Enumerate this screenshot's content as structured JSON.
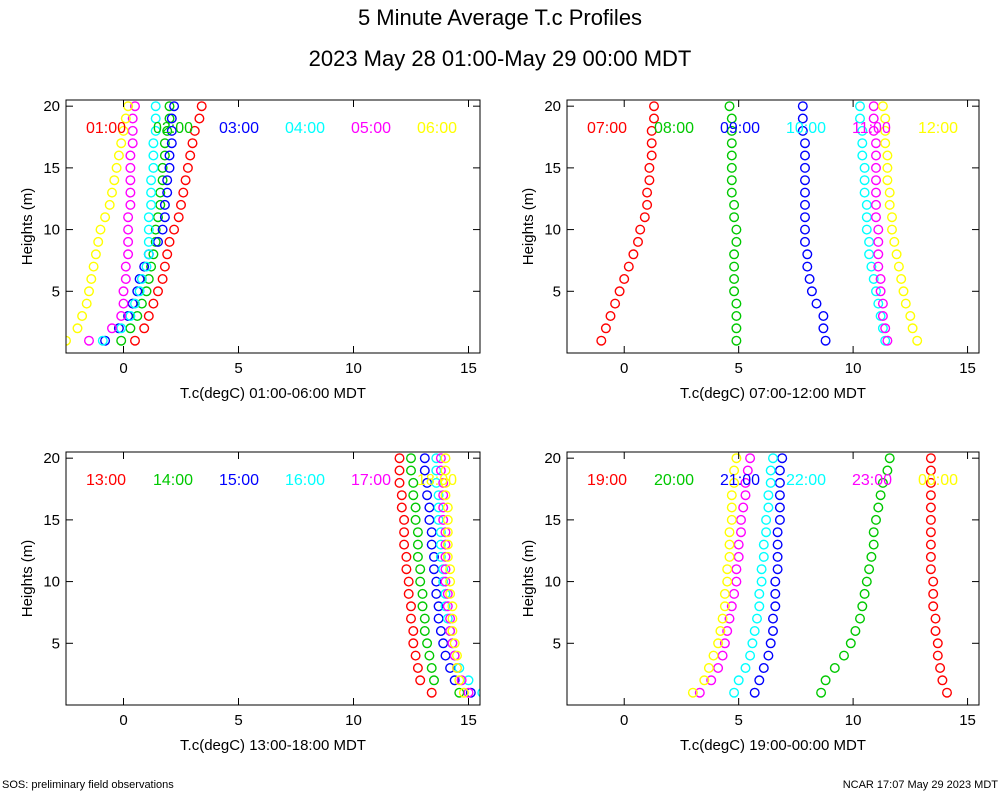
{
  "title": "5 Minute Average T.c Profiles",
  "subtitle": "2023 May 28 01:00-May 29 00:00 MDT",
  "footer_left": "SOS: preliminary field observations",
  "footer_right": "NCAR 17:07 May 29 2023 MDT",
  "colors": {
    "red": "#ff0000",
    "green": "#00c800",
    "blue": "#0000ff",
    "cyan": "#00ffff",
    "magenta": "#ff00ff",
    "yellow": "#ffff00"
  },
  "chart_data": [
    {
      "type": "scatter",
      "xlabel": "T.c(degC) 01:00-06:00 MDT",
      "ylabel": "Heights (m)",
      "xlim": [
        -2.5,
        15.5
      ],
      "ylim": [
        0,
        20.5
      ],
      "xticks": [
        0,
        5,
        10,
        15
      ],
      "yticks": [
        5,
        10,
        15,
        20
      ],
      "heights": [
        1,
        2,
        3,
        4,
        5,
        6,
        7,
        8,
        9,
        10,
        11,
        12,
        13,
        14,
        15,
        16,
        17,
        18,
        19,
        20
      ],
      "series": [
        {
          "name": "01:00",
          "color": "red",
          "values": [
            0.5,
            0.9,
            1.1,
            1.3,
            1.5,
            1.7,
            1.8,
            1.9,
            2.0,
            2.2,
            2.4,
            2.5,
            2.6,
            2.7,
            2.8,
            2.9,
            3.0,
            3.1,
            3.3,
            3.4
          ]
        },
        {
          "name": "02:00",
          "color": "green",
          "values": [
            -0.1,
            0.3,
            0.6,
            0.8,
            1.0,
            1.1,
            1.2,
            1.3,
            1.4,
            1.4,
            1.5,
            1.6,
            1.6,
            1.7,
            1.7,
            1.8,
            1.8,
            1.9,
            2.0,
            2.0
          ]
        },
        {
          "name": "03:00",
          "color": "blue",
          "values": [
            -0.8,
            -0.2,
            0.2,
            0.4,
            0.6,
            0.7,
            0.9,
            1.1,
            1.5,
            1.7,
            1.8,
            1.8,
            1.9,
            1.9,
            2.0,
            2.0,
            2.1,
            2.1,
            2.1,
            2.2
          ]
        },
        {
          "name": "04:00",
          "color": "cyan",
          "values": [
            -0.9,
            -0.1,
            0.3,
            0.5,
            0.7,
            0.8,
            1.0,
            1.1,
            1.1,
            1.1,
            1.1,
            1.2,
            1.2,
            1.2,
            1.3,
            1.3,
            1.3,
            1.4,
            1.4,
            1.4
          ]
        },
        {
          "name": "05:00",
          "color": "magenta",
          "values": [
            -1.5,
            -0.5,
            -0.1,
            0.0,
            0.0,
            0.1,
            0.1,
            0.2,
            0.2,
            0.2,
            0.2,
            0.3,
            0.3,
            0.3,
            0.3,
            0.3,
            0.4,
            0.4,
            0.4,
            0.5
          ]
        },
        {
          "name": "06:00",
          "color": "yellow",
          "values": [
            -2.5,
            -2.0,
            -1.8,
            -1.6,
            -1.5,
            -1.4,
            -1.3,
            -1.2,
            -1.1,
            -1.0,
            -0.8,
            -0.6,
            -0.5,
            -0.4,
            -0.3,
            -0.2,
            -0.1,
            0.0,
            0.1,
            0.2
          ]
        }
      ]
    },
    {
      "type": "scatter",
      "xlabel": "T.c(degC) 07:00-12:00 MDT",
      "ylabel": "Heights (m)",
      "xlim": [
        -2.5,
        15.5
      ],
      "ylim": [
        0,
        20.5
      ],
      "xticks": [
        0,
        5,
        10,
        15
      ],
      "yticks": [
        5,
        10,
        15,
        20
      ],
      "heights": [
        1,
        2,
        3,
        4,
        5,
        6,
        7,
        8,
        9,
        10,
        11,
        12,
        13,
        14,
        15,
        16,
        17,
        18,
        19,
        20
      ],
      "series": [
        {
          "name": "07:00",
          "color": "red",
          "values": [
            -1.0,
            -0.8,
            -0.6,
            -0.4,
            -0.2,
            0.0,
            0.2,
            0.4,
            0.6,
            0.7,
            0.9,
            1.0,
            1.0,
            1.1,
            1.1,
            1.2,
            1.2,
            1.2,
            1.3,
            1.3
          ]
        },
        {
          "name": "08:00",
          "color": "green",
          "values": [
            4.9,
            4.9,
            4.9,
            4.9,
            4.8,
            4.8,
            4.8,
            4.8,
            4.9,
            4.9,
            4.8,
            4.8,
            4.7,
            4.7,
            4.7,
            4.7,
            4.7,
            4.7,
            4.7,
            4.6
          ]
        },
        {
          "name": "09:00",
          "color": "blue",
          "values": [
            8.8,
            8.7,
            8.7,
            8.4,
            8.2,
            8.1,
            8.0,
            8.0,
            7.9,
            7.9,
            7.9,
            7.9,
            7.9,
            7.9,
            7.9,
            7.9,
            7.9,
            7.8,
            7.8,
            7.8
          ]
        },
        {
          "name": "10:00",
          "color": "cyan",
          "values": [
            11.4,
            11.3,
            11.2,
            11.1,
            11.0,
            10.9,
            10.8,
            10.7,
            10.7,
            10.6,
            10.6,
            10.6,
            10.5,
            10.5,
            10.5,
            10.4,
            10.4,
            10.4,
            10.3,
            10.3
          ]
        },
        {
          "name": "11:00",
          "color": "magenta",
          "values": [
            11.5,
            11.4,
            11.3,
            11.3,
            11.2,
            11.2,
            11.1,
            11.1,
            11.1,
            11.1,
            11.0,
            11.0,
            11.0,
            11.0,
            11.0,
            11.0,
            11.0,
            10.9,
            10.9,
            10.9
          ]
        },
        {
          "name": "12:00",
          "color": "yellow",
          "values": [
            12.8,
            12.6,
            12.5,
            12.3,
            12.2,
            12.1,
            12.0,
            11.9,
            11.8,
            11.7,
            11.7,
            11.6,
            11.6,
            11.5,
            11.5,
            11.5,
            11.4,
            11.4,
            11.4,
            11.3
          ]
        }
      ]
    },
    {
      "type": "scatter",
      "xlabel": "T.c(degC) 13:00-18:00 MDT",
      "ylabel": "Heights (m)",
      "xlim": [
        -2.5,
        15.5
      ],
      "ylim": [
        0,
        20.5
      ],
      "xticks": [
        0,
        5,
        10,
        15
      ],
      "yticks": [
        5,
        10,
        15,
        20
      ],
      "heights": [
        1,
        2,
        3,
        4,
        5,
        6,
        7,
        8,
        9,
        10,
        11,
        12,
        13,
        14,
        15,
        16,
        17,
        18,
        19,
        20
      ],
      "series": [
        {
          "name": "13:00",
          "color": "red",
          "values": [
            13.4,
            12.9,
            12.8,
            12.7,
            12.6,
            12.6,
            12.5,
            12.5,
            12.4,
            12.4,
            12.3,
            12.3,
            12.2,
            12.2,
            12.2,
            12.1,
            12.1,
            12.0,
            12.0,
            12.0
          ]
        },
        {
          "name": "14:00",
          "color": "green",
          "values": [
            14.6,
            13.5,
            13.4,
            13.3,
            13.2,
            13.1,
            13.1,
            13.0,
            13.0,
            12.9,
            12.9,
            12.8,
            12.8,
            12.8,
            12.7,
            12.7,
            12.6,
            12.6,
            12.5,
            12.5
          ]
        },
        {
          "name": "15:00",
          "color": "blue",
          "values": [
            15.1,
            14.4,
            14.2,
            14.0,
            13.9,
            13.8,
            13.7,
            13.7,
            13.6,
            13.6,
            13.5,
            13.5,
            13.4,
            13.4,
            13.3,
            13.3,
            13.2,
            13.2,
            13.1,
            13.1
          ]
        },
        {
          "name": "16:00",
          "color": "cyan",
          "values": [
            15.6,
            15.0,
            14.6,
            14.4,
            14.3,
            14.2,
            14.1,
            14.0,
            14.0,
            13.9,
            13.9,
            13.8,
            13.8,
            13.8,
            13.7,
            13.7,
            13.7,
            13.6,
            13.6,
            13.6
          ]
        },
        {
          "name": "17:00",
          "color": "magenta",
          "values": [
            15.0,
            14.7,
            14.5,
            14.4,
            14.3,
            14.2,
            14.2,
            14.1,
            14.1,
            14.0,
            14.0,
            14.0,
            14.0,
            14.0,
            13.9,
            13.9,
            13.9,
            13.9,
            13.8,
            13.8
          ]
        },
        {
          "name": "18:00",
          "color": "yellow",
          "values": [
            14.8,
            14.6,
            14.5,
            14.5,
            14.4,
            14.3,
            14.3,
            14.3,
            14.2,
            14.2,
            14.2,
            14.1,
            14.1,
            14.1,
            14.1,
            14.1,
            14.0,
            14.0,
            14.0,
            14.0
          ]
        }
      ]
    },
    {
      "type": "scatter",
      "xlabel": "T.c(degC) 19:00-00:00 MDT",
      "ylabel": "Heights (m)",
      "xlim": [
        -2.5,
        15.5
      ],
      "ylim": [
        0,
        20.5
      ],
      "xticks": [
        0,
        5,
        10,
        15
      ],
      "yticks": [
        5,
        10,
        15,
        20
      ],
      "heights": [
        1,
        2,
        3,
        4,
        5,
        6,
        7,
        8,
        9,
        10,
        11,
        12,
        13,
        14,
        15,
        16,
        17,
        18,
        19,
        20
      ],
      "series": [
        {
          "name": "19:00",
          "color": "red",
          "values": [
            14.1,
            13.9,
            13.8,
            13.7,
            13.7,
            13.6,
            13.6,
            13.5,
            13.5,
            13.5,
            13.4,
            13.4,
            13.4,
            13.4,
            13.4,
            13.4,
            13.4,
            13.4,
            13.4,
            13.4
          ]
        },
        {
          "name": "20:00",
          "color": "green",
          "values": [
            8.6,
            8.8,
            9.2,
            9.6,
            9.9,
            10.1,
            10.3,
            10.4,
            10.5,
            10.6,
            10.7,
            10.8,
            10.9,
            10.9,
            11.0,
            11.1,
            11.2,
            11.3,
            11.5,
            11.6
          ]
        },
        {
          "name": "21:00",
          "color": "blue",
          "values": [
            5.7,
            5.9,
            6.1,
            6.3,
            6.4,
            6.5,
            6.5,
            6.6,
            6.6,
            6.6,
            6.7,
            6.7,
            6.7,
            6.7,
            6.8,
            6.8,
            6.8,
            6.8,
            6.8,
            6.9
          ]
        },
        {
          "name": "22:00",
          "color": "cyan",
          "values": [
            4.8,
            5.0,
            5.3,
            5.5,
            5.6,
            5.7,
            5.8,
            5.9,
            5.9,
            6.0,
            6.0,
            6.1,
            6.1,
            6.2,
            6.2,
            6.3,
            6.3,
            6.4,
            6.4,
            6.5
          ]
        },
        {
          "name": "23:00",
          "color": "magenta",
          "values": [
            3.3,
            3.8,
            4.1,
            4.3,
            4.4,
            4.5,
            4.6,
            4.7,
            4.8,
            4.9,
            4.9,
            5.0,
            5.0,
            5.1,
            5.1,
            5.2,
            5.3,
            5.3,
            5.4,
            5.5
          ]
        },
        {
          "name": "00:00",
          "color": "yellow",
          "values": [
            3.0,
            3.5,
            3.7,
            3.9,
            4.1,
            4.2,
            4.3,
            4.4,
            4.4,
            4.5,
            4.5,
            4.6,
            4.6,
            4.6,
            4.7,
            4.7,
            4.7,
            4.8,
            4.8,
            4.9
          ]
        }
      ]
    }
  ]
}
